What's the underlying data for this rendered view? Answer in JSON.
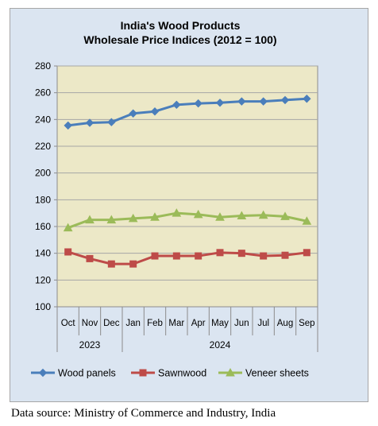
{
  "chart_data": {
    "type": "line",
    "title": [
      "India's Wood Products",
      "Wholesale Price Indices (2012 = 100)"
    ],
    "categories": [
      "Oct",
      "Nov",
      "Dec",
      "Jan",
      "Feb",
      "Mar",
      "Apr",
      "May",
      "Jun",
      "Jul",
      "Aug",
      "Sep"
    ],
    "year_groups": [
      {
        "label": "2023",
        "count": 3
      },
      {
        "label": "2024",
        "count": 9
      }
    ],
    "ylim": [
      100,
      280
    ],
    "yticks": [
      "100",
      "120",
      "140",
      "160",
      "180",
      "200",
      "220",
      "240",
      "260",
      "280"
    ],
    "grid": true,
    "legend_position": "bottom",
    "series": [
      {
        "name": "Wood panels",
        "color": "#4a7ebb",
        "marker": "diamond",
        "values": [
          235.5,
          237.5,
          238,
          244.5,
          246,
          251,
          252,
          252.5,
          253.5,
          253.5,
          254.5,
          255.5
        ]
      },
      {
        "name": "Sawnwood",
        "color": "#be4b48",
        "marker": "square",
        "values": [
          141,
          136,
          132,
          132,
          138,
          138,
          138,
          140.5,
          140,
          138,
          138.5,
          140.5
        ]
      },
      {
        "name": "Veneer sheets",
        "color": "#9bbb59",
        "marker": "triangle",
        "values": [
          159,
          165,
          165,
          166,
          167,
          170,
          169,
          167,
          168,
          168.5,
          167.5,
          164
        ]
      }
    ]
  },
  "source_text": "Data source: Ministry of Commerce and Industry, India"
}
